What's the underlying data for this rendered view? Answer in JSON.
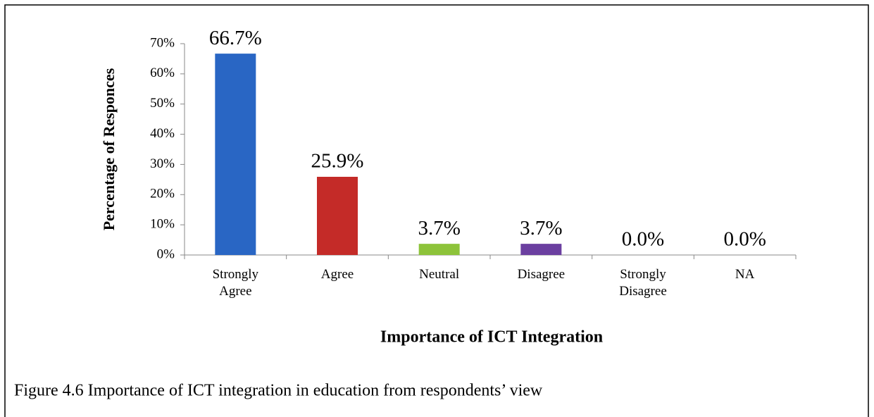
{
  "chart_data": {
    "type": "bar",
    "categories": [
      "Strongly Agree",
      "Agree",
      "Neutral",
      "Disagree",
      "Strongly Disagree",
      "NA"
    ],
    "values": [
      66.7,
      25.9,
      3.7,
      3.7,
      0.0,
      0.0
    ],
    "value_labels": [
      "66.7%",
      "25.9%",
      "3.7%",
      "3.7%",
      "0.0%",
      "0.0%"
    ],
    "colors": [
      "#2966c4",
      "#c42b28",
      "#8dc33a",
      "#6b3fa0",
      "#4bacc6",
      "#f79646"
    ],
    "ylim": [
      0,
      70
    ],
    "yticks": [
      {
        "value": 0,
        "label": "0%"
      },
      {
        "value": 10,
        "label": "10%"
      },
      {
        "value": 20,
        "label": "20%"
      },
      {
        "value": 30,
        "label": "30%"
      },
      {
        "value": 40,
        "label": "40%"
      },
      {
        "value": 50,
        "label": "50%"
      },
      {
        "value": 60,
        "label": "60%"
      },
      {
        "value": 70,
        "label": "70%"
      }
    ],
    "y_label": "Percentage of Responces",
    "x_label": "Importance of ICT Integration",
    "caption": "Figure 4.6  Importance of ICT integration in education from respondents’ view",
    "grid": false
  }
}
